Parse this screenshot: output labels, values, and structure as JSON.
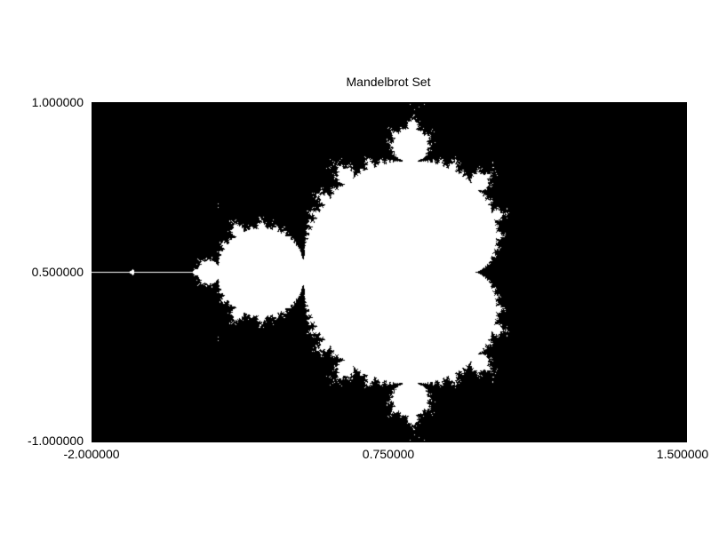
{
  "chart_data": {
    "type": "heatmap",
    "title": "Mandelbrot Set",
    "xlabel": "",
    "ylabel": "",
    "x_ticks": [
      "-2.000000",
      "0.750000",
      "1.500000"
    ],
    "y_ticks": [
      "1.000000",
      "0.500000",
      "-1.000000"
    ],
    "x_range": [
      -2.0,
      1.5
    ],
    "y_range": [
      -1.0,
      1.0
    ],
    "max_iterations": 40,
    "colors": {
      "outside": "#000000",
      "inside": "#ffffff"
    }
  }
}
